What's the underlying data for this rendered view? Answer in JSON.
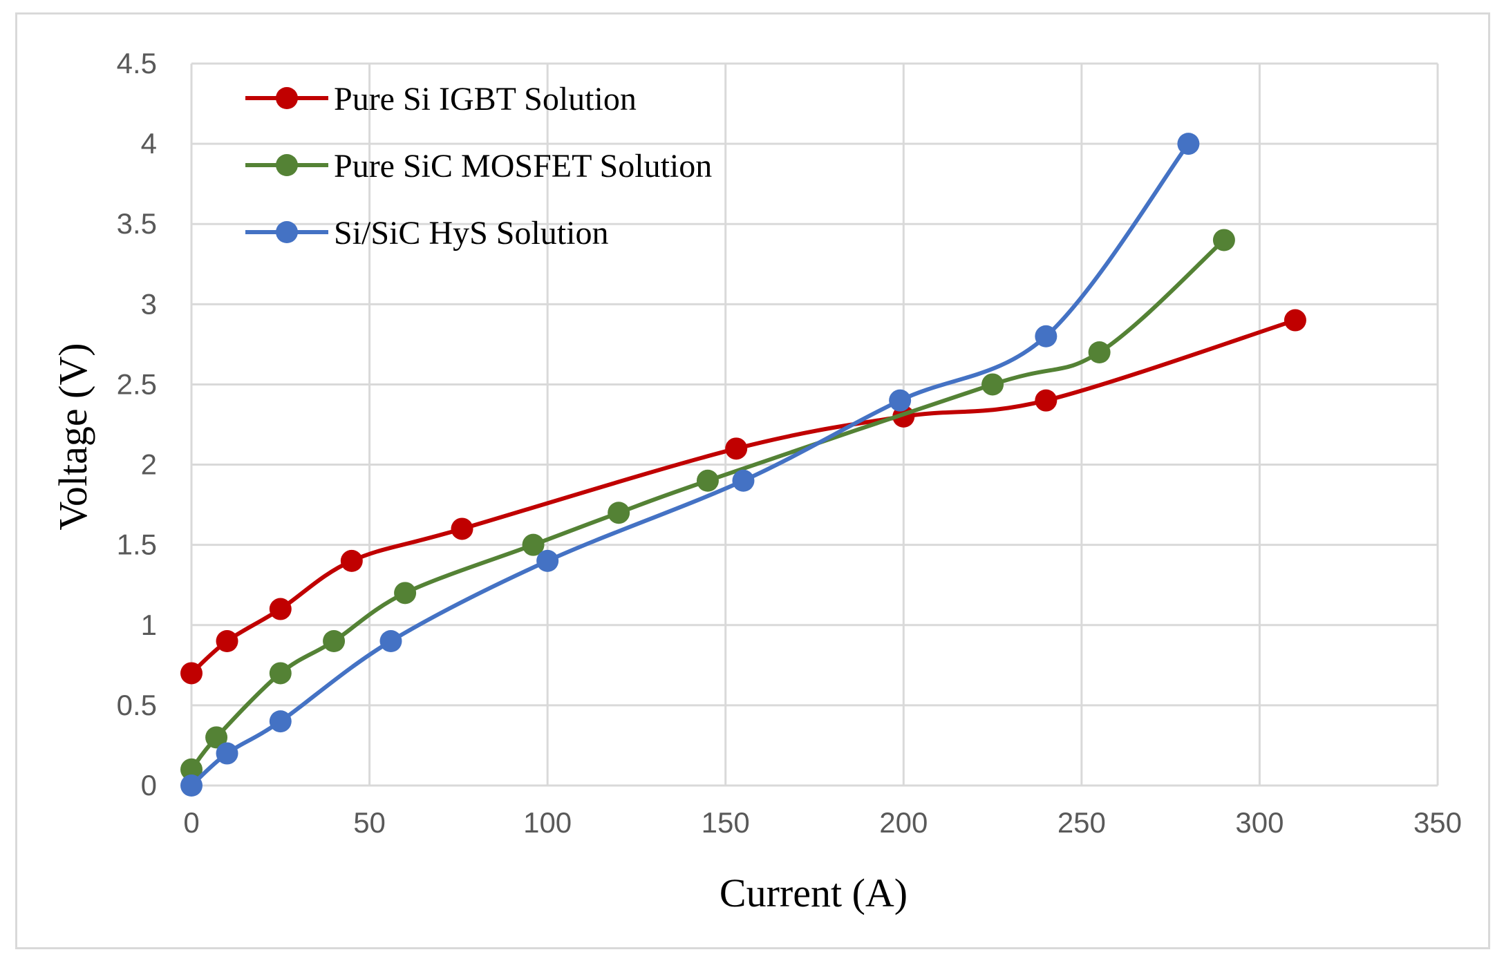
{
  "chart_data": {
    "type": "line",
    "title": "",
    "xlabel": "Current (A)",
    "ylabel": "Voltage (V)",
    "xlim": [
      0,
      350
    ],
    "ylim": [
      0,
      4.5
    ],
    "x_ticks": [
      "0",
      "50",
      "100",
      "150",
      "200",
      "250",
      "300",
      "350"
    ],
    "y_ticks": [
      "0",
      "0.5",
      "1",
      "1.5",
      "2",
      "2.5",
      "3",
      "3.5",
      "4",
      "4.5"
    ],
    "grid": true,
    "legend_position": "top-left",
    "series": [
      {
        "name": "Pure Si IGBT Solution",
        "color": "#c00000",
        "x": [
          0,
          10,
          25,
          45,
          76,
          153,
          200,
          240,
          310
        ],
        "y": [
          0.7,
          0.9,
          1.1,
          1.4,
          1.6,
          2.1,
          2.3,
          2.4,
          2.9
        ]
      },
      {
        "name": "Pure SiC MOSFET Solution",
        "color": "#548235",
        "x": [
          0,
          7,
          25,
          40,
          60,
          96,
          120,
          145,
          225,
          255,
          290
        ],
        "y": [
          0.1,
          0.3,
          0.7,
          0.9,
          1.2,
          1.5,
          1.7,
          1.9,
          2.5,
          2.7,
          3.4
        ]
      },
      {
        "name": "Si/SiC HyS Solution",
        "color": "#4472c4",
        "x": [
          0,
          10,
          25,
          56,
          100,
          155,
          199,
          240,
          280
        ],
        "y": [
          0.0,
          0.2,
          0.4,
          0.9,
          1.4,
          1.9,
          2.4,
          2.8,
          4.0
        ]
      }
    ]
  }
}
